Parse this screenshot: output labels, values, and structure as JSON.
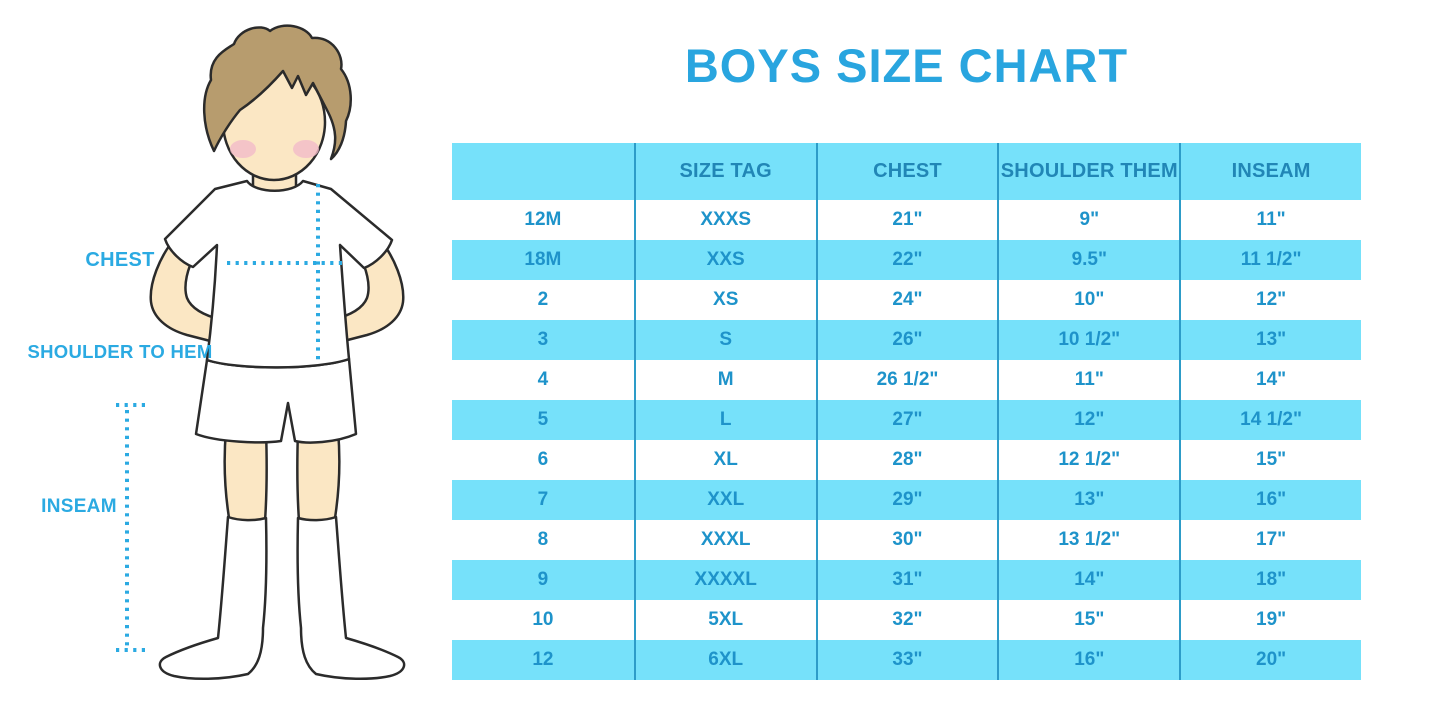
{
  "title": "BOYS SIZE CHART",
  "figure": {
    "chest_label": "CHEST",
    "shoulder_to_hem_label": "SHOULDER TO HEM",
    "inseam_label": "INSEAM"
  },
  "chart_data": {
    "type": "table",
    "columns": [
      "",
      "SIZE TAG",
      "CHEST",
      "SHOULDER THEM",
      "INSEAM"
    ],
    "rows": [
      [
        "12M",
        "XXXS",
        "21\"",
        "9\"",
        "11\""
      ],
      [
        "18M",
        "XXS",
        "22\"",
        "9.5\"",
        "11 1/2\""
      ],
      [
        "2",
        "XS",
        "24\"",
        "10\"",
        "12\""
      ],
      [
        "3",
        "S",
        "26\"",
        "10 1/2\"",
        "13\""
      ],
      [
        "4",
        "M",
        "26 1/2\"",
        "11\"",
        "14\""
      ],
      [
        "5",
        "L",
        "27\"",
        "12\"",
        "14 1/2\""
      ],
      [
        "6",
        "XL",
        "28\"",
        "12 1/2\"",
        "15\""
      ],
      [
        "7",
        "XXL",
        "29\"",
        "13\"",
        "16\""
      ],
      [
        "8",
        "XXXL",
        "30\"",
        "13 1/2\"",
        "17\""
      ],
      [
        "9",
        "XXXXL",
        "31\"",
        "14\"",
        "18\""
      ],
      [
        "10",
        "5XL",
        "32\"",
        "15\"",
        "19\""
      ],
      [
        "12",
        "6XL",
        "33\"",
        "16\"",
        "20\""
      ]
    ],
    "banded_row_indices": [
      1,
      3,
      5,
      7,
      9,
      11
    ],
    "legend_position": "none",
    "grid": "vertical-separators-only"
  },
  "colors": {
    "title_blue": "#29A5DF",
    "band_blue": "#76E1FA",
    "header_text": "#2186B6",
    "cell_text": "#1E93CA",
    "column_separator": "#2D9CC8",
    "measure_label_blue": "#2BAAE2",
    "dotted_line_blue": "#2BAAE2",
    "skin": "#FBE7C4",
    "hair_brown": "#B79C6E",
    "blush_pink": "#F3BBC9",
    "outline": "#2B2B2B"
  }
}
